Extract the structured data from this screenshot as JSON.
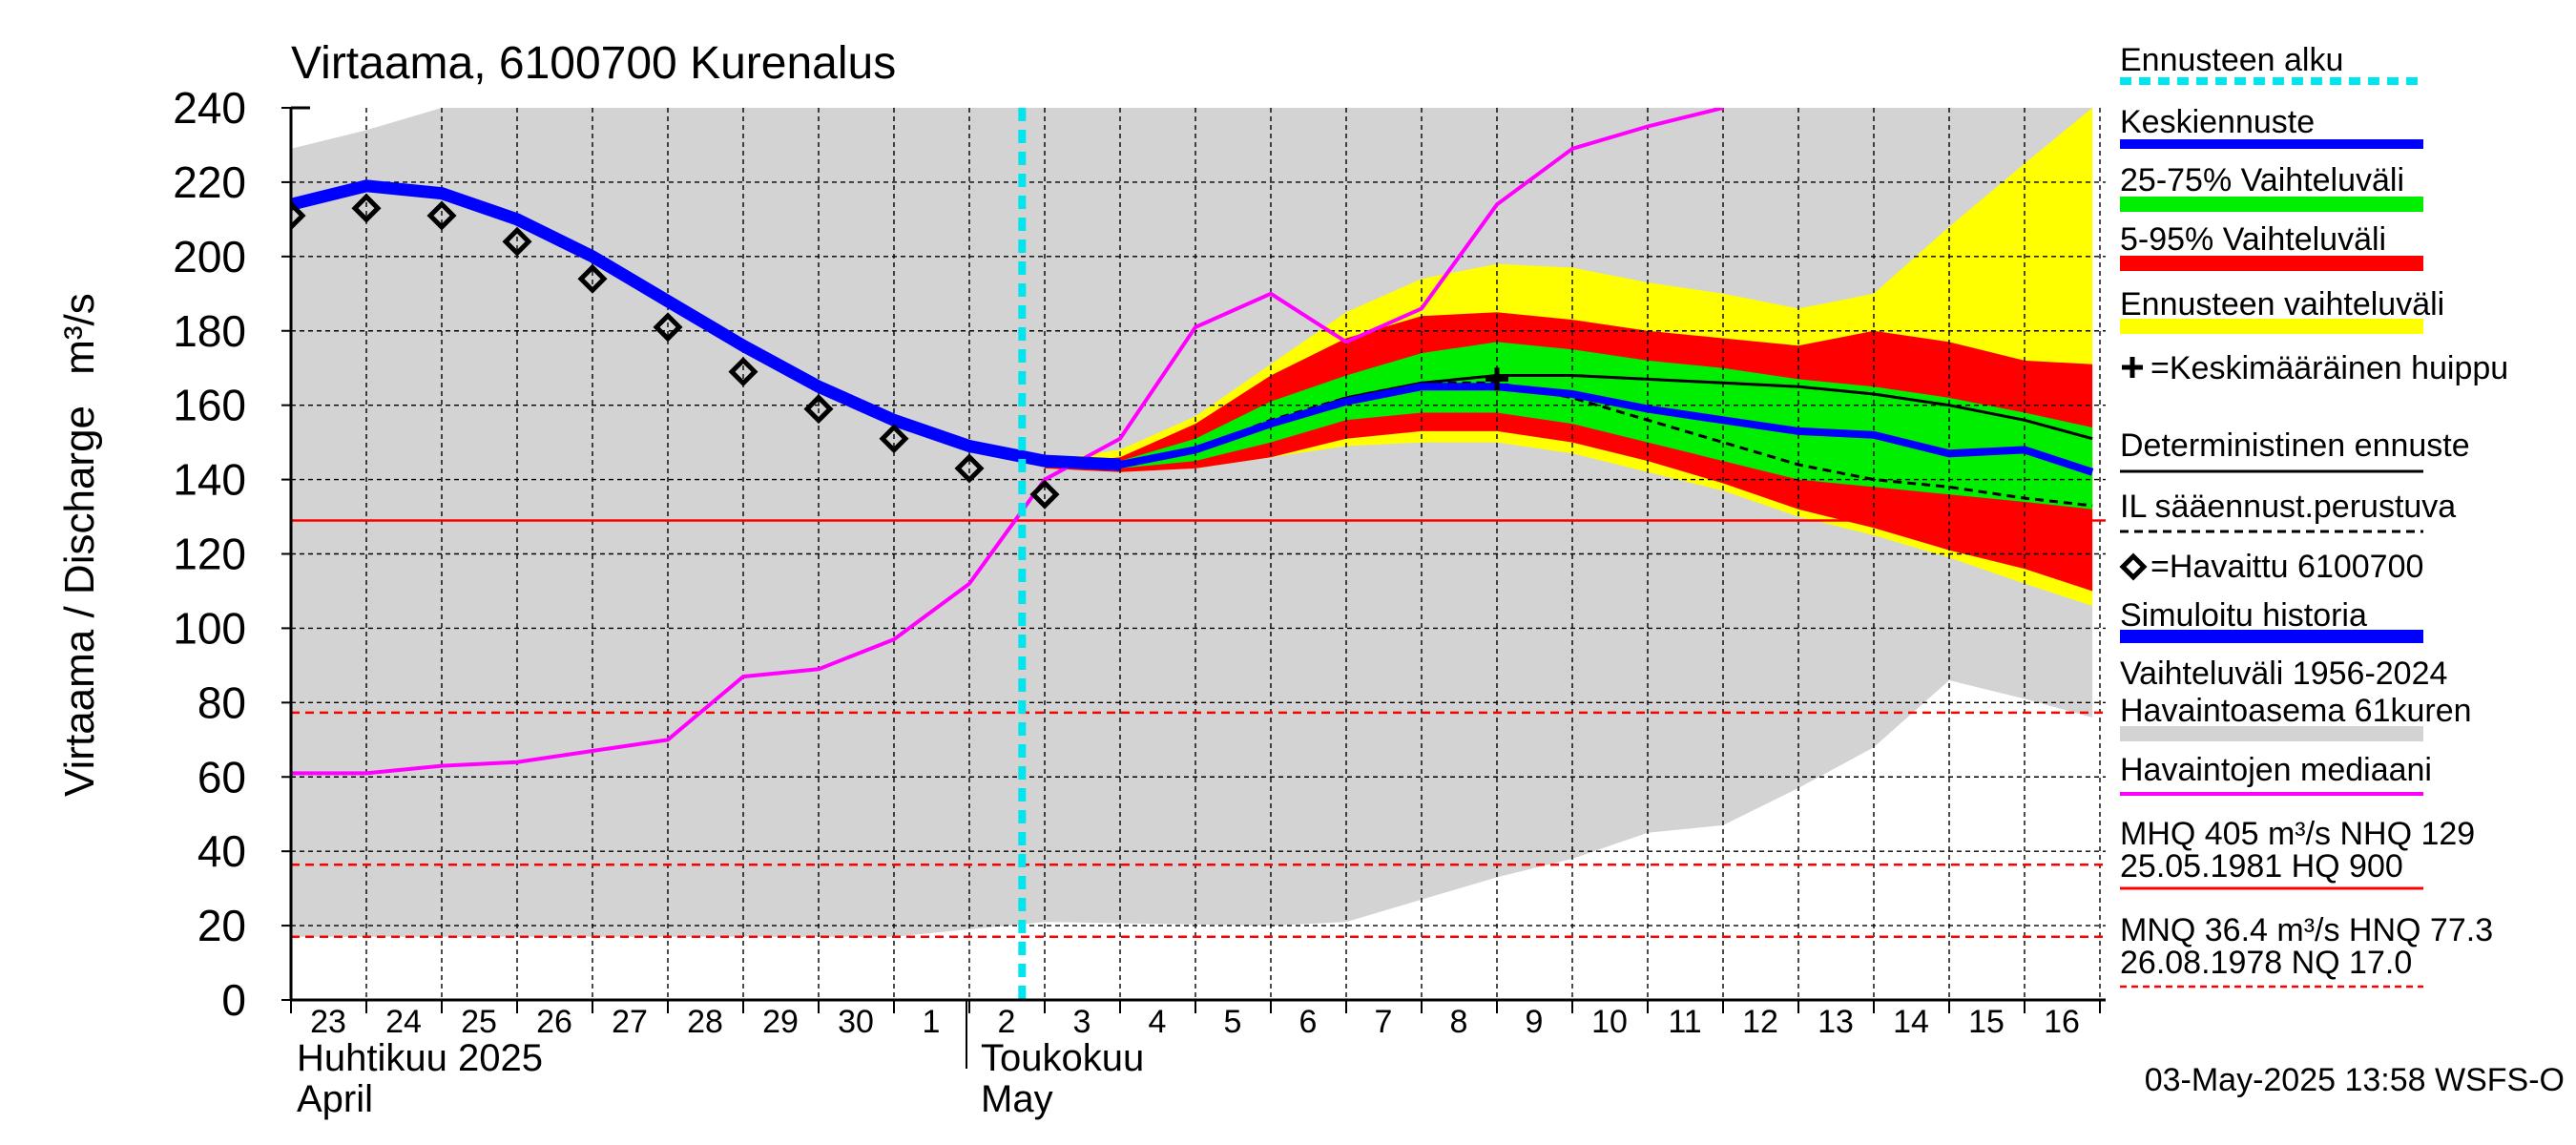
{
  "chart_data": {
    "type": "area",
    "title": "Virtaama, 6100700 Kurenalus",
    "ylabel": "Virtaama / Discharge",
    "yunit": "m³/s",
    "ylim": [
      0,
      240
    ],
    "yticks": [
      0,
      20,
      40,
      60,
      80,
      100,
      120,
      140,
      160,
      180,
      200,
      220,
      240
    ],
    "xlim": [
      "2025-04-23",
      "2025-05-16"
    ],
    "x_day_labels": [
      "23",
      "24",
      "25",
      "26",
      "27",
      "28",
      "29",
      "30",
      "1",
      "2",
      "3",
      "4",
      "5",
      "6",
      "7",
      "8",
      "9",
      "10",
      "11",
      "12",
      "13",
      "14",
      "15",
      "16"
    ],
    "month_labels": [
      {
        "fi": "Huhtikuu  2025",
        "en": "April",
        "start": "2025-04-23"
      },
      {
        "fi": "Toukokuu",
        "en": "May",
        "start": "2025-05-02"
      }
    ],
    "grid": true,
    "timestamp": "03-May-2025 13:58 WSFS-O",
    "forecast_start": "2025-05-03",
    "colors": {
      "history_range": "#d3d3d3",
      "forecast_range": "#ffff00",
      "range_5_95": "#ff0000",
      "range_25_75": "#00ee00",
      "mean_forecast": "#0000ff",
      "simulated_history": "#0000ff",
      "median": "#ff00ff",
      "forecast_start": "#00e5ee",
      "reference_line": "#ff0000"
    },
    "series": {
      "history_range_1956_2024": {
        "x": [
          "2025-04-23",
          "2025-04-24",
          "2025-04-25",
          "2025-05-01",
          "2025-05-03",
          "2025-05-06",
          "2025-05-07",
          "2025-05-08",
          "2025-05-09",
          "2025-05-10",
          "2025-05-11",
          "2025-05-12",
          "2025-05-13",
          "2025-05-14",
          "2025-05-15",
          "2025-05-16",
          "2025-05-16.9"
        ],
        "low": [
          17,
          17,
          17,
          17,
          21,
          20,
          21,
          27,
          33,
          38,
          45,
          47,
          57,
          68,
          86,
          81,
          76
        ],
        "high": [
          229,
          234,
          240,
          240,
          240,
          240,
          240,
          240,
          240,
          240,
          240,
          240,
          240,
          240,
          240,
          240,
          240
        ]
      },
      "ennusteen_vaihteluvali": {
        "x": [
          "2025-05-03",
          "2025-05-04",
          "2025-05-05",
          "2025-05-06",
          "2025-05-07",
          "2025-05-08",
          "2025-05-09",
          "2025-05-10",
          "2025-05-11",
          "2025-05-12",
          "2025-05-13",
          "2025-05-14",
          "2025-05-15",
          "2025-05-16",
          "2025-05-16.9"
        ],
        "low": [
          143,
          142,
          143,
          146,
          149,
          150,
          150,
          147,
          142,
          137,
          130,
          125,
          119,
          112,
          106
        ],
        "high": [
          145,
          148,
          157,
          171,
          185,
          194,
          198,
          197,
          193,
          190,
          186,
          190,
          208,
          225,
          240
        ]
      },
      "vaihteluvali_5_95": {
        "x": [
          "2025-05-03",
          "2025-05-04",
          "2025-05-05",
          "2025-05-06",
          "2025-05-07",
          "2025-05-08",
          "2025-05-09",
          "2025-05-10",
          "2025-05-11",
          "2025-05-12",
          "2025-05-13",
          "2025-05-14",
          "2025-05-15",
          "2025-05-16",
          "2025-05-16.9"
        ],
        "low": [
          143,
          142,
          143,
          146,
          151,
          153,
          153,
          150,
          145,
          139,
          132,
          127,
          121,
          116,
          110
        ],
        "high": [
          144,
          146,
          155,
          168,
          178,
          184,
          185,
          183,
          180,
          178,
          176,
          180,
          177,
          172,
          171
        ]
      },
      "vaihteluvali_25_75": {
        "x": [
          "2025-05-03",
          "2025-05-04",
          "2025-05-05",
          "2025-05-06",
          "2025-05-07",
          "2025-05-08",
          "2025-05-09",
          "2025-05-10",
          "2025-05-11",
          "2025-05-12",
          "2025-05-13",
          "2025-05-14",
          "2025-05-15",
          "2025-05-16",
          "2025-05-16.9"
        ],
        "low": [
          144,
          143,
          145,
          150,
          156,
          158,
          158,
          155,
          150,
          145,
          140,
          138,
          136,
          134,
          132
        ],
        "high": [
          144,
          145,
          151,
          161,
          168,
          174,
          177,
          175,
          172,
          170,
          167,
          165,
          162,
          158,
          154
        ]
      },
      "havaittu_6100700": {
        "x": [
          "2025-04-23",
          "2025-04-24",
          "2025-04-25",
          "2025-04-26",
          "2025-04-27",
          "2025-04-28",
          "2025-04-29",
          "2025-04-30",
          "2025-05-01",
          "2025-05-02",
          "2025-05-03"
        ],
        "y": [
          211,
          213,
          211,
          204,
          194,
          181,
          169,
          159,
          151,
          143,
          136
        ]
      },
      "simuloitu_historia": {
        "x": [
          "2025-04-23",
          "2025-04-24",
          "2025-04-25",
          "2025-04-26",
          "2025-04-27",
          "2025-04-28",
          "2025-04-29",
          "2025-04-30",
          "2025-05-01",
          "2025-05-02",
          "2025-05-03",
          "2025-05-04"
        ],
        "y": [
          214,
          219,
          217,
          210,
          200,
          188,
          176,
          165,
          156,
          149,
          145,
          144
        ]
      },
      "keskiennuste": {
        "x": [
          "2025-05-03",
          "2025-05-04",
          "2025-05-05",
          "2025-05-06",
          "2025-05-07",
          "2025-05-08",
          "2025-05-09",
          "2025-05-10",
          "2025-05-11",
          "2025-05-12",
          "2025-05-13",
          "2025-05-14",
          "2025-05-15",
          "2025-05-16",
          "2025-05-16.9"
        ],
        "y": [
          145,
          144,
          148,
          155,
          161,
          165,
          165,
          163,
          159,
          156,
          153,
          152,
          147,
          148,
          142
        ]
      },
      "deterministinen_ennuste": {
        "x": [
          "2025-05-03",
          "2025-05-04",
          "2025-05-05",
          "2025-05-06",
          "2025-05-07",
          "2025-05-08",
          "2025-05-09",
          "2025-05-10",
          "2025-05-11",
          "2025-05-12",
          "2025-05-13",
          "2025-05-14",
          "2025-05-15",
          "2025-05-16",
          "2025-05-16.9"
        ],
        "y": [
          145,
          144,
          148,
          155,
          162,
          166,
          168,
          168,
          167,
          166,
          165,
          163,
          160,
          156,
          151
        ]
      },
      "il_saaennuste": {
        "x": [
          "2025-05-03",
          "2025-05-04",
          "2025-05-05",
          "2025-05-06",
          "2025-05-07",
          "2025-05-08",
          "2025-05-09",
          "2025-05-10",
          "2025-05-11",
          "2025-05-12",
          "2025-05-13",
          "2025-05-14",
          "2025-05-15",
          "2025-05-16",
          "2025-05-16.9"
        ],
        "y": [
          145,
          144,
          148,
          156,
          162,
          166,
          166,
          162,
          156,
          150,
          144,
          140,
          138,
          135,
          133
        ]
      },
      "havaintojen_mediaani": {
        "x": [
          "2025-04-23",
          "2025-04-24",
          "2025-04-25",
          "2025-04-26",
          "2025-04-27",
          "2025-04-28",
          "2025-04-29",
          "2025-04-30",
          "2025-05-01",
          "2025-05-02",
          "2025-05-03",
          "2025-05-04",
          "2025-05-05",
          "2025-05-06",
          "2025-05-07",
          "2025-05-08",
          "2025-05-09",
          "2025-05-10",
          "2025-05-11",
          "2025-05-12"
        ],
        "y": [
          61,
          61,
          63,
          64,
          67,
          70,
          87,
          89,
          97,
          112,
          140,
          151,
          181,
          190,
          177,
          186,
          214,
          229,
          235,
          240
        ]
      },
      "keskimaarainen_huippu": {
        "x": "2025-05-09",
        "y": 167
      }
    },
    "reference_lines": [
      {
        "label": "NHQ",
        "value": 129,
        "style": "solid"
      },
      {
        "label": "HNQ",
        "value": 77.3,
        "style": "dashed"
      },
      {
        "label": "MNQ",
        "value": 36.4,
        "style": "dashed"
      },
      {
        "label": "NQ",
        "value": 17.0,
        "style": "dashed"
      }
    ],
    "legend": {
      "placement": "right",
      "entries": [
        {
          "text": "Ennusteen alku"
        },
        {
          "text": "Keskiennuste"
        },
        {
          "text": "25-75% Vaihteluväli"
        },
        {
          "text": "5-95% Vaihteluväli"
        },
        {
          "text": "Ennusteen vaihteluväli"
        },
        {
          "text": "=Keskimääräinen huippu"
        },
        {
          "text": "Deterministinen ennuste"
        },
        {
          "text": "IL sääennust.perustuva"
        },
        {
          "text": "=Havaittu 6100700"
        },
        {
          "text": "Simuloitu historia"
        },
        {
          "text": "Vaihteluväli 1956-2024"
        },
        {
          "text": " Havaintoasema 61kuren"
        },
        {
          "text": "Havaintojen mediaani"
        },
        {
          "text": "MHQ  405 m³/s NHQ  129"
        },
        {
          "text": "25.05.1981 HQ  900"
        },
        {
          "text": "MNQ 36.4 m³/s HNQ 77.3"
        },
        {
          "text": "26.08.1978 NQ 17.0"
        }
      ]
    }
  }
}
